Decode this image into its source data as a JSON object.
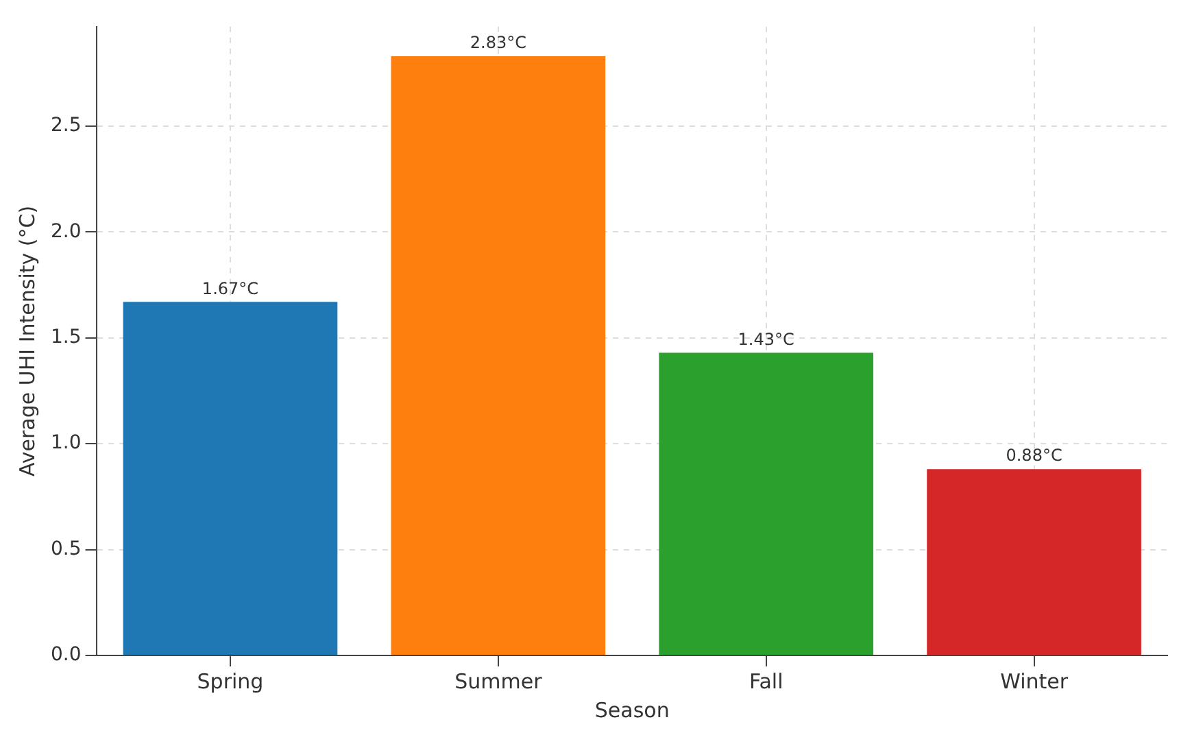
{
  "chart_data": {
    "type": "bar",
    "xlabel": "Season",
    "ylabel": "Average UHI Intensity (°C)",
    "categories": [
      "Spring",
      "Summer",
      "Fall",
      "Winter"
    ],
    "values": [
      1.67,
      2.83,
      1.43,
      0.88
    ],
    "colors": [
      "#1f77b4",
      "#ff7f0e",
      "#2ca02c",
      "#d62728"
    ],
    "value_labels": [
      "1.67°C",
      "2.83°C",
      "1.43°C",
      "0.88°C"
    ],
    "ylim": [
      0,
      2.97
    ],
    "yticks": [
      {
        "value": 0,
        "label": "0.0"
      },
      0.5,
      {
        "value": 1,
        "label": "1.0"
      },
      1.5,
      {
        "value": 2,
        "label": "2.0"
      },
      2.5
    ],
    "grid": true,
    "legend": false
  }
}
